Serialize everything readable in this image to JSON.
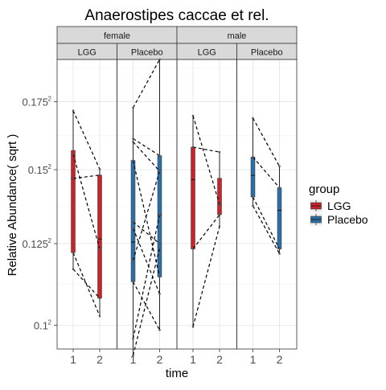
{
  "chart_data": {
    "type": "box",
    "title": "Anaerostipes caccae et rel.",
    "xlabel": "time",
    "ylabel": "Relative Abundance( sqrt )",
    "y_scale": "sqrt",
    "ylim": [
      0.0933,
      0.1915
    ],
    "y_ticks": [
      {
        "value": 0.1,
        "label": "0.1",
        "exp": "2"
      },
      {
        "value": 0.125,
        "label": "0.125",
        "exp": "2"
      },
      {
        "value": 0.15,
        "label": "0.15",
        "exp": "2"
      },
      {
        "value": 0.175,
        "label": "0.175",
        "exp": "2"
      }
    ],
    "x_categories": [
      "1",
      "2"
    ],
    "facet_rows": [
      "female",
      "male"
    ],
    "facet_cols": [
      "LGG",
      "Placebo"
    ],
    "grid": true,
    "legend": {
      "title": "group",
      "position": "right",
      "entries": [
        {
          "name": "LGG",
          "color": "#c8232a"
        },
        {
          "name": "Placebo",
          "color": "#2e6ea6"
        }
      ]
    },
    "panels": [
      {
        "sex": "female",
        "group": "LGG",
        "color": "#c8232a",
        "boxes": [
          {
            "time": "1",
            "min": 0.1169,
            "q1": 0.1221,
            "median": 0.1469,
            "q3": 0.1569,
            "max": 0.1716
          },
          {
            "time": "2",
            "min": 0.1027,
            "q1": 0.108,
            "median": 0.1265,
            "q3": 0.1481,
            "max": 0.1502
          }
        ],
        "pairs": [
          [
            0.1716,
            0.1502
          ],
          [
            0.1556,
            0.1233
          ],
          [
            0.1469,
            0.1481
          ],
          [
            0.1221,
            0.1027
          ],
          [
            0.1169,
            0.108
          ]
        ]
      },
      {
        "sex": "female",
        "group": "Placebo",
        "color": "#2e6ea6",
        "boxes": [
          {
            "time": "1",
            "min": 0.0915,
            "q1": 0.113,
            "median": 0.1255,
            "q3": 0.1533,
            "max": 0.1727
          },
          {
            "time": "2",
            "min": 0.0987,
            "q1": 0.1145,
            "median": 0.1345,
            "q3": 0.155,
            "max": 0.1915
          }
        ],
        "pairs": [
          [
            0.1727,
            0.1915
          ],
          [
            0.1612,
            0.155
          ],
          [
            0.16,
            0.1495
          ],
          [
            0.1533,
            0.1145
          ],
          [
            0.1321,
            0.125
          ],
          [
            0.13,
            0.1093
          ],
          [
            0.1196,
            0.1495
          ],
          [
            0.113,
            0.0987
          ],
          [
            0.0962,
            0.1345
          ],
          [
            0.0915,
            0.1235
          ]
        ]
      },
      {
        "sex": "male",
        "group": "LGG",
        "color": "#c8232a",
        "boxes": [
          {
            "time": "1",
            "min": 0.0996,
            "q1": 0.1233,
            "median": 0.1465,
            "q3": 0.1581,
            "max": 0.1697
          },
          {
            "time": "2",
            "min": 0.1306,
            "q1": 0.1345,
            "median": 0.138,
            "q3": 0.147,
            "max": 0.1563
          }
        ],
        "pairs": [
          [
            0.1697,
            0.138
          ],
          [
            0.1581,
            0.1563
          ],
          [
            0.1233,
            0.1345
          ],
          [
            0.0996,
            0.1306
          ]
        ]
      },
      {
        "sex": "male",
        "group": "Placebo",
        "color": "#2e6ea6",
        "boxes": [
          {
            "time": "1",
            "min": 0.1375,
            "q1": 0.1405,
            "median": 0.148,
            "q3": 0.1545,
            "max": 0.1688
          },
          {
            "time": "2",
            "min": 0.1218,
            "q1": 0.1233,
            "median": 0.136,
            "q3": 0.1437,
            "max": 0.1512
          }
        ],
        "pairs": [
          [
            0.1688,
            0.1512
          ],
          [
            0.1545,
            0.1437
          ],
          [
            0.1405,
            0.1233
          ],
          [
            0.1375,
            0.1218
          ]
        ]
      }
    ]
  }
}
